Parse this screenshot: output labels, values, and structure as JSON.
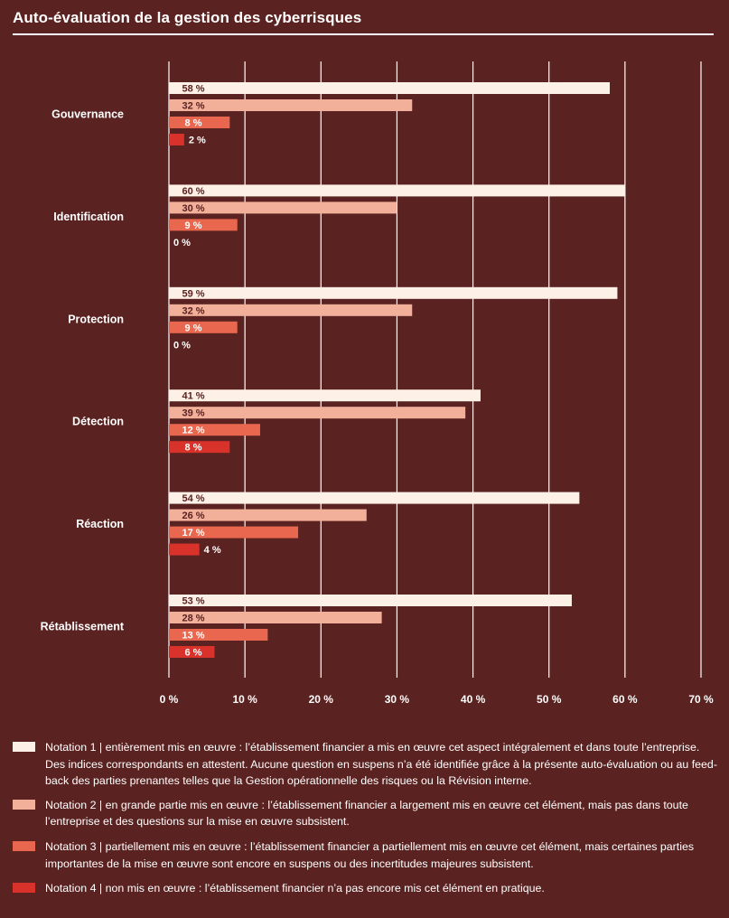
{
  "title": "Auto-évaluation de la gestion des cyberrisques",
  "colors": {
    "background": "#5a2220",
    "notation1": "#fdf0e6",
    "notation2": "#f2b09a",
    "notation3": "#e8674e",
    "notation4": "#d8322a",
    "grid": "#ffffff"
  },
  "chart_data": {
    "type": "bar",
    "orientation": "horizontal",
    "categories": [
      "Gouvernance",
      "Identification",
      "Protection",
      "Détection",
      "Réaction",
      "Rétablissement"
    ],
    "series": [
      {
        "name": "Notation 1",
        "values": [
          58,
          60,
          59,
          41,
          54,
          53
        ],
        "labels": [
          "58 %",
          "60 %",
          "59 %",
          "41 %",
          "54 %",
          "53 %"
        ]
      },
      {
        "name": "Notation 2",
        "values": [
          32,
          30,
          32,
          39,
          26,
          28
        ],
        "labels": [
          "32 %",
          "30 %",
          "32 %",
          "39 %",
          "26 %",
          "28 %"
        ]
      },
      {
        "name": "Notation 3",
        "values": [
          8,
          9,
          9,
          12,
          17,
          13
        ],
        "labels": [
          "8 %",
          "9 %",
          "9 %",
          "12 %",
          "17 %",
          "13 %"
        ]
      },
      {
        "name": "Notation 4",
        "values": [
          2,
          0,
          0,
          8,
          4,
          6
        ],
        "labels": [
          "2 %",
          "0 %",
          "0 %",
          "8 %",
          "4 %",
          "6 %"
        ]
      }
    ],
    "xlim": [
      0,
      70
    ],
    "xticks": [
      0,
      10,
      20,
      30,
      40,
      50,
      60,
      70
    ],
    "xtick_labels": [
      "0 %",
      "10 %",
      "20 %",
      "30 %",
      "40 %",
      "50 %",
      "60 %",
      "70 %"
    ],
    "grid": true
  },
  "legend": [
    {
      "name": "Notation 1 |",
      "text": " entièrement mis en œuvre : l’établissement financier a mis en œuvre cet aspect intégralement et dans toute l’entreprise. Des indices correspondants en attestent. Aucune question en suspens n’a été identifiée grâce à la présente auto-évaluation ou au feed-back des parties prenantes telles que la Gestion opérationnelle des risques ou la Révision interne."
    },
    {
      "name": "Notation 2 |",
      "text": " en grande partie mis en œuvre : l’établissement financier a largement mis en œuvre cet élément, mais pas dans toute l’entreprise et des questions sur la mise en œuvre subsistent."
    },
    {
      "name": "Notation 3 |",
      "text": " partiellement mis en œuvre : l’établissement financier a partiellement mis en œuvre cet élément, mais certaines parties importantes de la mise en œuvre sont encore en suspens ou des incertitudes majeures subsistent."
    },
    {
      "name": "Notation 4 |",
      "text": " non mis en œuvre : l’établissement financier n’a pas encore mis cet élément en pratique."
    }
  ]
}
